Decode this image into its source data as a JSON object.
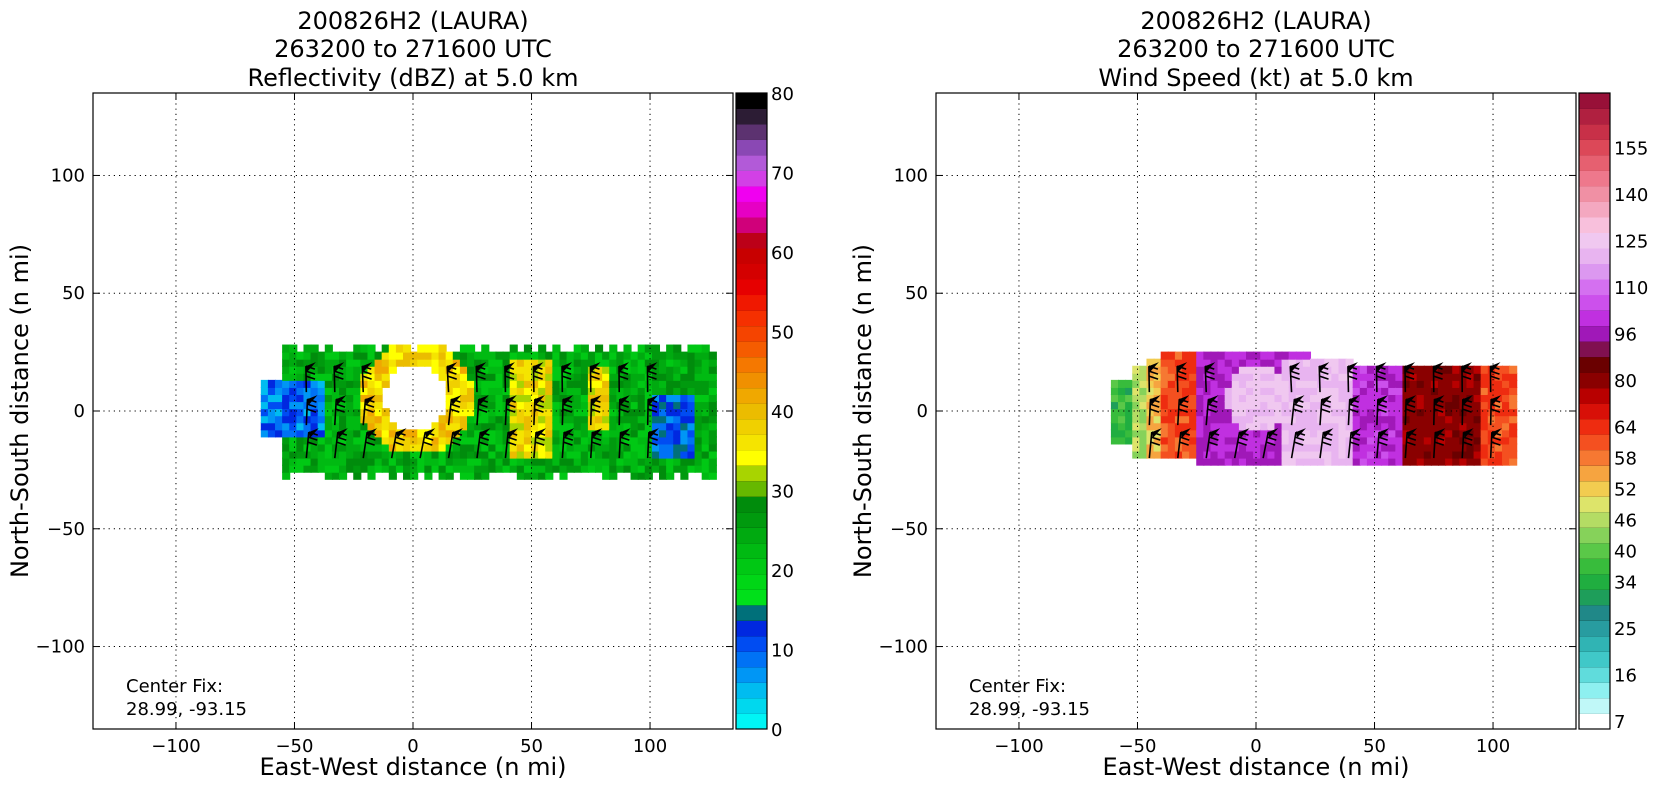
{
  "chart_data": [
    {
      "type": "heatmap",
      "title_lines": [
        "200826H2 (LAURA)",
        "263200 to 271600 UTC",
        "Reflectivity (dBZ) at 5.0 km"
      ],
      "xlabel": "East-West distance (n mi)",
      "ylabel": "North-South distance (n mi)",
      "xlim": [
        -135,
        135
      ],
      "ylim": [
        -135,
        135
      ],
      "xticks": [
        -100,
        -50,
        0,
        50,
        100
      ],
      "yticks": [
        -100,
        -50,
        0,
        50,
        100
      ],
      "grid": true,
      "center_fix_label": "Center Fix:",
      "center_fix_value": "28.99, -93.15",
      "colorbar": {
        "min": 0,
        "max": 80,
        "tick_values": [
          0,
          10,
          20,
          30,
          40,
          50,
          60,
          70,
          80
        ],
        "tick_labels": [
          "0",
          "10",
          "20",
          "30",
          "40",
          "50",
          "60",
          "70",
          "80"
        ],
        "colors": [
          "#00f5f5",
          "#00d8ee",
          "#00bcf0",
          "#0096f5",
          "#0072f5",
          "#004cf2",
          "#0028e0",
          "#00707a",
          "#00e01a",
          "#00d616",
          "#00c814",
          "#00ba12",
          "#00aa10",
          "#009a0e",
          "#008c0c",
          "#66b800",
          "#a8d400",
          "#ffff00",
          "#f5e400",
          "#f0d000",
          "#ebbc00",
          "#f0a800",
          "#f09000",
          "#f57800",
          "#f55c00",
          "#f54400",
          "#f53000",
          "#f01800",
          "#e60000",
          "#d40000",
          "#c80000",
          "#bc0018",
          "#d0007a",
          "#e600c4",
          "#f000f0",
          "#d240e6",
          "#b25ad8",
          "#8a48b4",
          "#5c3270",
          "#2c1c34",
          "#000000"
        ]
      },
      "field_regions": [
        {
          "shape": "band",
          "x": [
            -56,
            125
          ],
          "y": [
            -30,
            26
          ],
          "level_dbz": 24
        },
        {
          "shape": "band",
          "x": [
            -64,
            -40
          ],
          "y": [
            -12,
            12
          ],
          "level_dbz": 8
        },
        {
          "shape": "band",
          "x": [
            100,
            118
          ],
          "y": [
            -22,
            4
          ],
          "level_dbz": 10
        },
        {
          "shape": "ring",
          "cx": 0,
          "cy": 4,
          "r_inner": 14,
          "r_outer": 24,
          "level_dbz": 38
        },
        {
          "shape": "band",
          "x": [
            40,
            58
          ],
          "y": [
            -20,
            20
          ],
          "level_dbz": 36
        },
        {
          "shape": "band",
          "x": [
            72,
            82
          ],
          "y": [
            -10,
            18
          ],
          "level_dbz": 36
        }
      ],
      "echo_free_eye": {
        "cx": 0,
        "cy": 4,
        "r": 14
      }
    },
    {
      "type": "heatmap",
      "title_lines": [
        "200826H2 (LAURA)",
        "263200 to 271600 UTC",
        "Wind Speed (kt) at 5.0 km"
      ],
      "xlabel": "East-West distance (n mi)",
      "ylabel": "North-South distance (n mi)",
      "xlim": [
        -135,
        135
      ],
      "ylim": [
        -135,
        135
      ],
      "xticks": [
        -100,
        -50,
        0,
        50,
        100
      ],
      "yticks": [
        -100,
        -50,
        0,
        50,
        100
      ],
      "grid": true,
      "center_fix_label": "Center Fix:",
      "center_fix_value": "28.99, -93.15",
      "colorbar": {
        "tick_labels": [
          "7",
          "16",
          "25",
          "34",
          "40",
          "46",
          "52",
          "58",
          "64",
          "80",
          "96",
          "110",
          "125",
          "140",
          "155"
        ],
        "tick_bin_index": [
          0,
          3,
          6,
          9,
          11,
          13,
          15,
          17,
          19,
          22,
          25,
          28,
          31,
          34,
          37
        ],
        "colors": [
          "#ffffff",
          "#c0f8f8",
          "#8ef0f0",
          "#60dcdc",
          "#40c8c8",
          "#30b4b4",
          "#289ca0",
          "#208888",
          "#1e9e5a",
          "#20ae40",
          "#38bc3c",
          "#5ac848",
          "#86d25a",
          "#b4dc64",
          "#dde46a",
          "#f2cc50",
          "#f6a440",
          "#f67832",
          "#f45020",
          "#ee2c10",
          "#d81008",
          "#b80000",
          "#8a0000",
          "#6a0000",
          "#801050",
          "#a018b8",
          "#c030e0",
          "#cc50ec",
          "#d470f0",
          "#dc98f0",
          "#e8b4f0",
          "#f0c8f0",
          "#f8c0dc",
          "#f4a8c0",
          "#f090a4",
          "#ee788c",
          "#e66070",
          "#dc4858",
          "#c83048",
          "#b02040",
          "#981038"
        ]
      },
      "field_regions": [
        {
          "shape": "band",
          "x": [
            -62,
            -54
          ],
          "y": [
            -16,
            10
          ],
          "level_kt": 36
        },
        {
          "shape": "band",
          "x": [
            -54,
            -48
          ],
          "y": [
            -20,
            16
          ],
          "level_kt": 46
        },
        {
          "shape": "band",
          "x": [
            -48,
            -40
          ],
          "y": [
            -22,
            20
          ],
          "level_kt": 52
        },
        {
          "shape": "band",
          "x": [
            -40,
            -26
          ],
          "y": [
            -22,
            22
          ],
          "level_kt": 62
        },
        {
          "shape": "band",
          "x": [
            -26,
            20
          ],
          "y": [
            -24,
            22
          ],
          "level_kt": 98
        },
        {
          "shape": "band",
          "x": [
            10,
            40
          ],
          "y": [
            -24,
            20
          ],
          "level_kt": 122
        },
        {
          "shape": "band",
          "x": [
            40,
            62
          ],
          "y": [
            -24,
            16
          ],
          "level_kt": 100
        },
        {
          "shape": "band",
          "x": [
            62,
            94
          ],
          "y": [
            -24,
            16
          ],
          "level_kt": 80
        },
        {
          "shape": "band",
          "x": [
            94,
            108
          ],
          "y": [
            -24,
            16
          ],
          "level_kt": 62
        }
      ],
      "low_wind_eye": {
        "cx": 0,
        "cy": 4,
        "r": 14
      }
    }
  ]
}
